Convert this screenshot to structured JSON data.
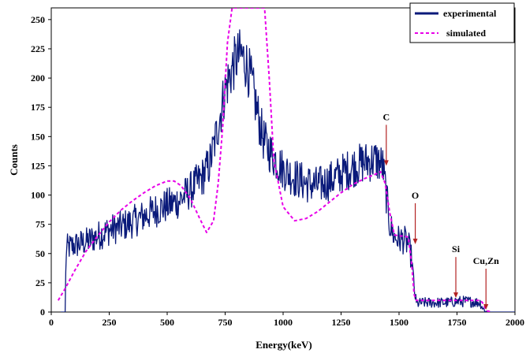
{
  "chart_data": {
    "type": "line",
    "title": "",
    "xlabel": "Energy(keV)",
    "ylabel": "Counts",
    "xlim": [
      0,
      2000
    ],
    "ylim": [
      0,
      260
    ],
    "xticks": [
      0,
      250,
      500,
      750,
      1000,
      1250,
      1500,
      1750,
      2000
    ],
    "yticks": [
      0,
      25,
      50,
      75,
      100,
      125,
      150,
      175,
      200,
      225,
      250
    ],
    "grid": false,
    "legend_position": "top-right",
    "colors": {
      "experimental": "#0a1a7a",
      "simulated": "#e800e8",
      "arrow": "#b22222"
    },
    "series": [
      {
        "name": "experimental",
        "style": "solid",
        "x": [
          40,
          60,
          62,
          64,
          70,
          100,
          150,
          200,
          250,
          300,
          350,
          400,
          450,
          500,
          550,
          600,
          650,
          680,
          700,
          720,
          750,
          780,
          800,
          820,
          840,
          860,
          880,
          900,
          920,
          950,
          1000,
          1050,
          1100,
          1150,
          1200,
          1250,
          1300,
          1350,
          1400,
          1430,
          1445,
          1460,
          1480,
          1500,
          1520,
          1540,
          1555,
          1565,
          1575,
          1600,
          1650,
          1700,
          1750,
          1800,
          1850,
          1860,
          1870,
          1880,
          1900,
          1950,
          2000
        ],
        "y": [
          0,
          0,
          25,
          52,
          55,
          57,
          60,
          65,
          70,
          73,
          77,
          82,
          87,
          91,
          95,
          104,
          115,
          125,
          140,
          160,
          190,
          208,
          217,
          220,
          213,
          200,
          180,
          160,
          145,
          135,
          122,
          115,
          110,
          108,
          112,
          118,
          124,
          128,
          130,
          125,
          100,
          75,
          64,
          62,
          62,
          58,
          45,
          20,
          7,
          8,
          8,
          8,
          9,
          9,
          8,
          4,
          1,
          0,
          0,
          0,
          0
        ]
      },
      {
        "name": "simulated",
        "style": "dashed",
        "x": [
          30,
          60,
          100,
          150,
          200,
          250,
          300,
          350,
          400,
          450,
          500,
          530,
          560,
          600,
          640,
          670,
          700,
          720,
          740,
          760,
          780,
          800,
          820,
          850,
          880,
          900,
          920,
          940,
          960,
          1000,
          1050,
          1100,
          1150,
          1200,
          1250,
          1300,
          1350,
          1400,
          1420,
          1440,
          1460,
          1480,
          1500,
          1520,
          1540,
          1555,
          1565,
          1575,
          1600,
          1650,
          1700,
          1750,
          1800,
          1850,
          1860,
          1870,
          1880,
          1900
        ],
        "y": [
          10,
          20,
          35,
          52,
          65,
          77,
          87,
          95,
          102,
          108,
          112,
          112,
          108,
          97,
          80,
          68,
          78,
          110,
          160,
          230,
          260,
          260,
          260,
          260,
          260,
          260,
          260,
          200,
          130,
          90,
          78,
          80,
          86,
          94,
          102,
          109,
          114,
          118,
          120,
          110,
          85,
          66,
          65,
          65,
          64,
          40,
          15,
          10,
          10,
          10,
          10,
          10,
          10,
          10,
          8,
          4,
          1,
          0
        ]
      }
    ],
    "annotations": [
      {
        "label": "C",
        "x": 1445,
        "y": 125
      },
      {
        "label": "O",
        "x": 1570,
        "y": 58
      },
      {
        "label": "Si",
        "x": 1745,
        "y": 12
      },
      {
        "label": "Cu,Zn",
        "x": 1875,
        "y": 2
      }
    ]
  }
}
